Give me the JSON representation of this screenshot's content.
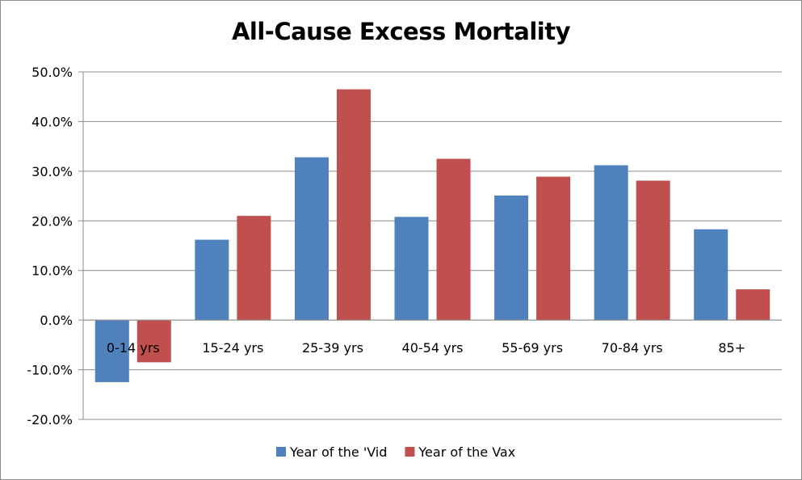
{
  "chart_data": {
    "type": "bar",
    "title": "All-Cause Excess Mortality",
    "xlabel": "",
    "ylabel": "",
    "categories": [
      "0-14 yrs",
      "15-24 yrs",
      "25-39 yrs",
      "40-54 yrs",
      "55-69 yrs",
      "70-84 yrs",
      "85+"
    ],
    "series": [
      {
        "name": "Year of the 'Vid",
        "color": "#4f81bd",
        "values": [
          -12.5,
          16.2,
          32.8,
          20.8,
          25.1,
          31.2,
          18.3
        ]
      },
      {
        "name": "Year of the Vax",
        "color": "#c0504d",
        "values": [
          -8.5,
          21.0,
          46.5,
          32.5,
          28.9,
          28.1,
          6.2
        ]
      }
    ],
    "ylim": [
      -20,
      50
    ],
    "yticks": [
      -20,
      -10,
      0,
      10,
      20,
      30,
      40,
      50
    ],
    "ytick_labels": [
      "-20.0%",
      "-10.0%",
      "0.0%",
      "10.0%",
      "20.0%",
      "30.0%",
      "40.0%",
      "50.0%"
    ],
    "grid": true,
    "legend_position": "bottom"
  }
}
